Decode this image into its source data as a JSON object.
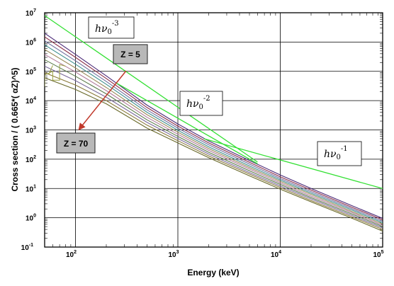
{
  "chart_data": {
    "type": "line",
    "title": "",
    "xlabel": "Energy (keV)",
    "ylabel": "Cross section / ( 0.665*( αZ)^5)",
    "xscale": "log",
    "yscale": "log",
    "xlim": [
      50,
      100000
    ],
    "ylim": [
      0.1,
      10000000
    ],
    "grid": true,
    "x_ticks": [
      {
        "base": "10",
        "exp": "2",
        "value": 100
      },
      {
        "base": "10",
        "exp": "3",
        "value": 1000
      },
      {
        "base": "10",
        "exp": "4",
        "value": 10000
      },
      {
        "base": "10",
        "exp": "5",
        "value": 100000
      }
    ],
    "y_ticks": [
      {
        "base": "10",
        "exp": "-1",
        "value": 0.1
      },
      {
        "base": "10",
        "exp": "0",
        "value": 1
      },
      {
        "base": "10",
        "exp": "1",
        "value": 10
      },
      {
        "base": "10",
        "exp": "2",
        "value": 100
      },
      {
        "base": "10",
        "exp": "3",
        "value": 1000
      },
      {
        "base": "10",
        "exp": "4",
        "value": 10000
      },
      {
        "base": "10",
        "exp": "5",
        "value": 100000
      },
      {
        "base": "10",
        "exp": "6",
        "value": 1000000
      },
      {
        "base": "10",
        "exp": "7",
        "value": 10000000
      }
    ],
    "x": [
      50,
      100,
      200,
      500,
      1000,
      2000,
      5000,
      10000,
      20000,
      50000,
      100000
    ],
    "series": [
      {
        "color": "#4b2a78",
        "values": [
          2000000,
          380000,
          70000,
          7000,
          1600,
          420,
          90,
          29,
          10,
          2.6,
          0.95
        ]
      },
      {
        "color": "#8a2f4a",
        "values": [
          1500000,
          300000,
          57000,
          5800,
          1350,
          360,
          78,
          25,
          8.8,
          2.3,
          0.85
        ]
      },
      {
        "color": "#6f6f9f",
        "values": [
          1100000,
          230000,
          45000,
          4800,
          1150,
          310,
          68,
          22,
          7.8,
          2.05,
          0.76
        ]
      },
      {
        "color": "#3f8f8f",
        "values": [
          800000,
          175000,
          36000,
          4000,
          970,
          265,
          59,
          19.5,
          6.9,
          1.85,
          0.68
        ]
      },
      {
        "color": "#9a8a5a",
        "values": [
          560000,
          130000,
          28000,
          3300,
          830,
          230,
          52,
          17.5,
          6.2,
          1.65,
          0.61
        ]
      },
      {
        "color": "#b07a9a",
        "values": [
          380000,
          95000,
          22000,
          2700,
          710,
          200,
          46,
          15.5,
          5.5,
          1.5,
          0.55
        ]
      },
      {
        "color": "#5a7a4a",
        "values": [
          250000,
          68000,
          17000,
          2200,
          600,
          172,
          40,
          13.8,
          4.9,
          1.35,
          0.5
        ]
      },
      {
        "color": "#7a6a9a",
        "values": [
          150000,
          48000,
          13000,
          1800,
          510,
          150,
          35,
          12.2,
          4.4,
          1.2,
          0.45
        ]
      },
      {
        "color": "#8a7a3a",
        "values": [
          90000,
          34000,
          10000,
          1450,
          430,
          130,
          31,
          10.8,
          3.9,
          1.08,
          0.4
        ]
      },
      {
        "color": "#6a6a2a",
        "values": [
          60000,
          24000,
          7800,
          1150,
          360,
          112,
          27,
          9.5,
          3.5,
          0.97,
          0.35
        ]
      }
    ],
    "edges": [
      {
        "color": "#9aa040",
        "points": [
          [
            50,
            30000
          ],
          [
            50,
            75000
          ],
          [
            60,
            100000
          ],
          [
            60,
            50000
          ],
          [
            70,
            50000
          ],
          [
            70,
            170000
          ],
          [
            80,
            150000
          ]
        ]
      },
      {
        "color": "#9aa040",
        "points": [
          [
            55,
            80000
          ],
          [
            60,
            160000
          ]
        ]
      }
    ],
    "reference_lines": [
      {
        "color": "#33e033",
        "points": [
          [
            50,
            8000000
          ],
          [
            6000,
            80
          ]
        ]
      },
      {
        "color": "#33e033",
        "points": [
          [
            250,
            40000
          ],
          [
            6000,
            70
          ]
        ]
      },
      {
        "color": "#33e033",
        "points": [
          [
            1800,
            500
          ],
          [
            100000,
            10
          ]
        ]
      }
    ],
    "annotations": {
      "hv3": {
        "base": "hν",
        "sub": "0",
        "sup": "-3"
      },
      "hv2": {
        "base": "hν",
        "sub": "0",
        "sup": "-2"
      },
      "hv1": {
        "base": "hν",
        "sub": "0",
        "sup": "-1"
      },
      "z5": "Z = 5",
      "z70": "Z = 70"
    },
    "colors": {
      "reference": "#33e033",
      "arrow": "#c0392b",
      "z_box": "#b8b8b8"
    }
  }
}
